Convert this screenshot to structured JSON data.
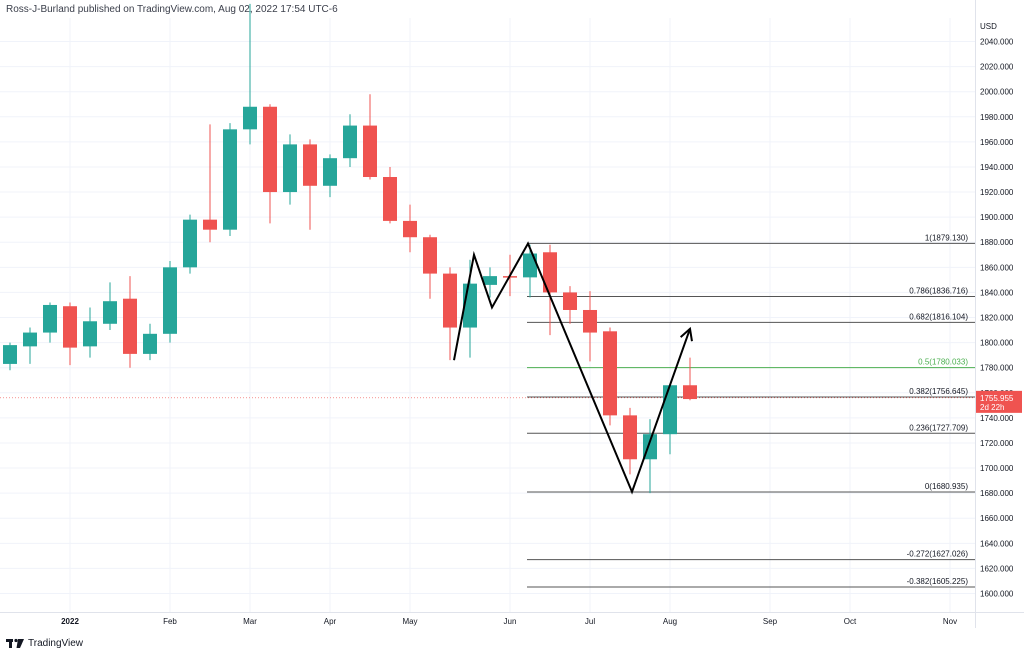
{
  "header": {
    "publisher": "Ross-J-Burland published on TradingView.com, Aug 02, 2022 17:54 UTC-6"
  },
  "footer": {
    "brand": "TradingView"
  },
  "colors": {
    "up": "#26a69a",
    "down": "#ef5350",
    "fib_line": "#555555",
    "fib_mid": "#4caf50",
    "price_label_bg": "#ef5350",
    "pattern_line": "#000000"
  },
  "chart_data": {
    "type": "candlestick",
    "timeframe": "weekly",
    "currency": "USD",
    "ylim": [
      1590,
      2055
    ],
    "y_ticks": [
      1600,
      1620,
      1640,
      1660,
      1680,
      1700,
      1720,
      1740,
      1760,
      1780,
      1800,
      1820,
      1840,
      1860,
      1880,
      1900,
      1920,
      1940,
      1960,
      1980,
      2000,
      2020,
      2040
    ],
    "x_ticks": [
      {
        "label": "2022",
        "week": 3
      },
      {
        "label": "Feb",
        "week": 8
      },
      {
        "label": "Mar",
        "week": 12
      },
      {
        "label": "Apr",
        "week": 16
      },
      {
        "label": "May",
        "week": 20
      },
      {
        "label": "Jun",
        "week": 25
      },
      {
        "label": "Jul",
        "week": 29
      },
      {
        "label": "Aug",
        "week": 33
      },
      {
        "label": "Sep",
        "week": 38
      },
      {
        "label": "Oct",
        "week": 42
      },
      {
        "label": "Nov",
        "week": 47
      }
    ],
    "candles": [
      {
        "o": 1783,
        "h": 1800,
        "l": 1778,
        "c": 1798
      },
      {
        "o": 1797,
        "h": 1812,
        "l": 1783,
        "c": 1808
      },
      {
        "o": 1808,
        "h": 1832,
        "l": 1800,
        "c": 1830
      },
      {
        "o": 1829,
        "h": 1832,
        "l": 1782,
        "c": 1796
      },
      {
        "o": 1797,
        "h": 1828,
        "l": 1788,
        "c": 1817
      },
      {
        "o": 1815,
        "h": 1848,
        "l": 1810,
        "c": 1833
      },
      {
        "o": 1835,
        "h": 1853,
        "l": 1780,
        "c": 1791
      },
      {
        "o": 1791,
        "h": 1815,
        "l": 1786,
        "c": 1807
      },
      {
        "o": 1807,
        "h": 1865,
        "l": 1800,
        "c": 1860
      },
      {
        "o": 1860,
        "h": 1902,
        "l": 1855,
        "c": 1898
      },
      {
        "o": 1898,
        "h": 1974,
        "l": 1880,
        "c": 1890
      },
      {
        "o": 1890,
        "h": 1975,
        "l": 1885,
        "c": 1970
      },
      {
        "o": 1970,
        "h": 2070,
        "l": 1958,
        "c": 1988
      },
      {
        "o": 1988,
        "h": 1990,
        "l": 1895,
        "c": 1920
      },
      {
        "o": 1920,
        "h": 1966,
        "l": 1910,
        "c": 1958
      },
      {
        "o": 1958,
        "h": 1962,
        "l": 1890,
        "c": 1925
      },
      {
        "o": 1925,
        "h": 1950,
        "l": 1916,
        "c": 1947
      },
      {
        "o": 1947,
        "h": 1982,
        "l": 1940,
        "c": 1973
      },
      {
        "o": 1973,
        "h": 1998,
        "l": 1930,
        "c": 1932
      },
      {
        "o": 1932,
        "h": 1940,
        "l": 1895,
        "c": 1897
      },
      {
        "o": 1897,
        "h": 1910,
        "l": 1872,
        "c": 1884
      },
      {
        "o": 1884,
        "h": 1886,
        "l": 1835,
        "c": 1855
      },
      {
        "o": 1855,
        "h": 1860,
        "l": 1786,
        "c": 1812
      },
      {
        "o": 1812,
        "h": 1866,
        "l": 1788,
        "c": 1847
      },
      {
        "o": 1846,
        "h": 1860,
        "l": 1836,
        "c": 1853
      },
      {
        "o": 1853,
        "h": 1870,
        "l": 1837,
        "c": 1852
      },
      {
        "o": 1852,
        "h": 1878,
        "l": 1836,
        "c": 1871
      },
      {
        "o": 1872,
        "h": 1878,
        "l": 1806,
        "c": 1840
      },
      {
        "o": 1840,
        "h": 1845,
        "l": 1815,
        "c": 1826
      },
      {
        "o": 1826,
        "h": 1841,
        "l": 1785,
        "c": 1808
      },
      {
        "o": 1809,
        "h": 1812,
        "l": 1734,
        "c": 1742
      },
      {
        "o": 1742,
        "h": 1748,
        "l": 1695,
        "c": 1707
      },
      {
        "o": 1707,
        "h": 1739,
        "l": 1680,
        "c": 1727
      },
      {
        "o": 1727,
        "h": 1767,
        "l": 1711,
        "c": 1766
      },
      {
        "o": 1766,
        "h": 1788,
        "l": 1754,
        "c": 1755
      }
    ],
    "fibonacci": {
      "week_start": 26,
      "levels": [
        {
          "ratio": "1",
          "price": 1879.13,
          "label": "1(1879.130)"
        },
        {
          "ratio": "0.786",
          "price": 1836.716,
          "label": "0.786(1836.716)"
        },
        {
          "ratio": "0.682",
          "price": 1816.104,
          "label": "0.682(1816.104)"
        },
        {
          "ratio": "0.5",
          "price": 1780.033,
          "label": "0.5(1780.033)"
        },
        {
          "ratio": "0.382",
          "price": 1756.645,
          "label": "0.382(1756.645)"
        },
        {
          "ratio": "0.236",
          "price": 1727.709,
          "label": "0.236(1727.709)"
        },
        {
          "ratio": "0",
          "price": 1680.935,
          "label": "0(1680.935)"
        },
        {
          "ratio": "-0.272",
          "price": 1627.026,
          "label": "-0.272(1627.026)"
        },
        {
          "ratio": "-0.382",
          "price": 1605.225,
          "label": "-0.382(1605.225)"
        }
      ]
    },
    "pattern_lines": [
      [
        {
          "week": 22.2,
          "price": 1786
        },
        {
          "week": 23.2,
          "price": 1870
        },
        {
          "week": 24.1,
          "price": 1828
        },
        {
          "week": 25.9,
          "price": 1879
        },
        {
          "week": 31.1,
          "price": 1681
        },
        {
          "week": 34.0,
          "price": 1811
        }
      ]
    ],
    "arrow_end": {
      "week": 34.0,
      "price": 1811
    },
    "last_price": {
      "value": "1755.955",
      "countdown": "2d 22h",
      "price": 1755.955
    }
  }
}
